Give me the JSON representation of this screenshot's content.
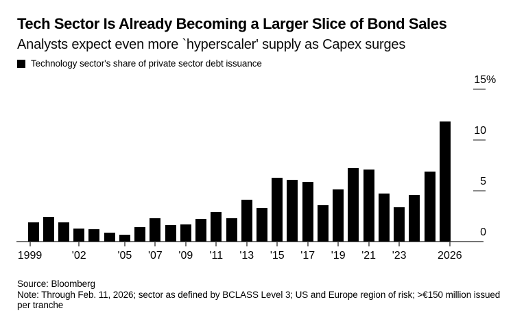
{
  "header": {
    "title": "Tech Sector Is Already Becoming a Larger Slice of Bond Sales",
    "subtitle": "Analysts expect even more `hyperscaler' supply as Capex surges"
  },
  "legend": {
    "label": "Technology sector's share of private sector debt issuance"
  },
  "chart_data": {
    "type": "bar",
    "title": "Technology sector's share of private sector debt issuance",
    "unit": "%",
    "x": [
      1999,
      2000,
      2001,
      2002,
      2003,
      2004,
      2005,
      2006,
      2007,
      2008,
      2009,
      2010,
      2011,
      2012,
      2013,
      2014,
      2015,
      2016,
      2017,
      2018,
      2019,
      2020,
      2021,
      2022,
      2023,
      2024,
      2025,
      2026
    ],
    "values": [
      1.9,
      2.4,
      1.9,
      1.3,
      1.2,
      0.9,
      0.7,
      1.4,
      2.3,
      1.6,
      1.7,
      2.2,
      2.9,
      2.3,
      4.1,
      3.3,
      6.3,
      6.1,
      5.9,
      3.6,
      5.1,
      7.2,
      7.1,
      4.7,
      3.4,
      4.6,
      6.9,
      11.8
    ],
    "ylim": [
      0,
      15
    ],
    "yticks": [
      {
        "value": 0,
        "label": "0"
      },
      {
        "value": 5,
        "label": "5"
      },
      {
        "value": 10,
        "label": "10"
      },
      {
        "value": 15,
        "label": "15%"
      }
    ],
    "xticks": [
      {
        "year": 1999,
        "label": "1999"
      },
      {
        "year": 2002,
        "label": "'02"
      },
      {
        "year": 2005,
        "label": "'05"
      },
      {
        "year": 2007,
        "label": "'07"
      },
      {
        "year": 2009,
        "label": "'09"
      },
      {
        "year": 2011,
        "label": "'11"
      },
      {
        "year": 2013,
        "label": "'13"
      },
      {
        "year": 2015,
        "label": "'15"
      },
      {
        "year": 2017,
        "label": "'17"
      },
      {
        "year": 2019,
        "label": "'19"
      },
      {
        "year": 2021,
        "label": "'21"
      },
      {
        "year": 2023,
        "label": "'23"
      },
      {
        "year": 2026,
        "label": "2026"
      }
    ],
    "bar_color": "#000000",
    "axis_color": "#737373",
    "grid": false,
    "legend_position": "top-left",
    "yaxis_side": "right"
  },
  "footer": {
    "source": "Source: Bloomberg",
    "note": "Note: Through Feb. 11, 2026; sector as defined by BCLASS Level 3; US and Europe region of risk; >€150 million issued per tranche"
  }
}
